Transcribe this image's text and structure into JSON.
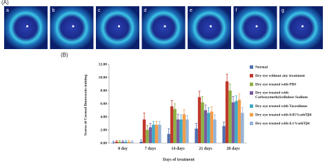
{
  "panel_a": {
    "label": "(A)",
    "image_labels": [
      "a",
      "b",
      "c",
      "d",
      "e",
      "f",
      "g"
    ]
  },
  "panel_b_label": "(B)",
  "chart_data": {
    "type": "bar",
    "x_label": "Days of treatment",
    "y_label": "Scores of Corneal fluorescein staining",
    "categories": [
      "0 day",
      "7 days",
      "14 days",
      "21 days",
      "28 days"
    ],
    "ylim": [
      0,
      12
    ],
    "yticks": [
      {
        "value": 0,
        "label": "0.00"
      },
      {
        "value": 2,
        "label": "2.00"
      },
      {
        "value": 4,
        "label": "4.00"
      },
      {
        "value": 6,
        "label": "6.00"
      },
      {
        "value": 8,
        "label": "8.00"
      },
      {
        "value": 10,
        "label": "10.00"
      },
      {
        "value": 12,
        "label": "12.00"
      }
    ],
    "legend": "right",
    "series": [
      {
        "name": "Normal",
        "color": "#4f6fb0",
        "values": [
          0.1,
          0.2,
          1.4,
          2.2,
          2.6
        ],
        "errors": [
          0.2,
          0.3,
          0.8,
          0.8,
          0.6
        ]
      },
      {
        "name": "Dry eye without any treatment",
        "color": "#c0392b",
        "values": [
          0.2,
          3.6,
          5.6,
          7.0,
          9.4
        ],
        "errors": [
          0.2,
          1.0,
          0.9,
          0.9,
          1.1
        ]
      },
      {
        "name": "Dry eye treated with PBS",
        "color": "#8db043",
        "values": [
          0.2,
          2.0,
          5.2,
          6.2,
          8.0
        ],
        "errors": [
          0.2,
          0.7,
          0.8,
          0.9,
          1.0
        ]
      },
      {
        "name": "Dry eye treated with Carboxymethylcellulose Sodium",
        "color": "#7a5c9e",
        "values": [
          0.2,
          2.4,
          3.6,
          5.0,
          6.2
        ],
        "errors": [
          0.2,
          0.6,
          0.8,
          0.8,
          0.9
        ]
      },
      {
        "name": "Dry eye treated with Tacrolimus",
        "color": "#3fa9c5",
        "values": [
          0.2,
          2.8,
          3.6,
          4.6,
          6.4
        ],
        "errors": [
          0.2,
          0.5,
          0.7,
          0.8,
          0.8
        ]
      },
      {
        "name": "Dry eye treated with 0.05%sehTβ4",
        "color": "#f39c4a",
        "values": [
          0.2,
          2.8,
          4.4,
          4.8,
          6.6
        ],
        "errors": [
          0.2,
          0.5,
          0.7,
          0.7,
          0.9
        ]
      },
      {
        "name": "Dry eye treated with 0.1%sehTβ4",
        "color": "#95b3d7",
        "values": [
          0.2,
          2.8,
          3.6,
          3.6,
          4.6
        ],
        "errors": [
          0.2,
          0.5,
          0.6,
          0.7,
          0.8
        ]
      }
    ]
  }
}
